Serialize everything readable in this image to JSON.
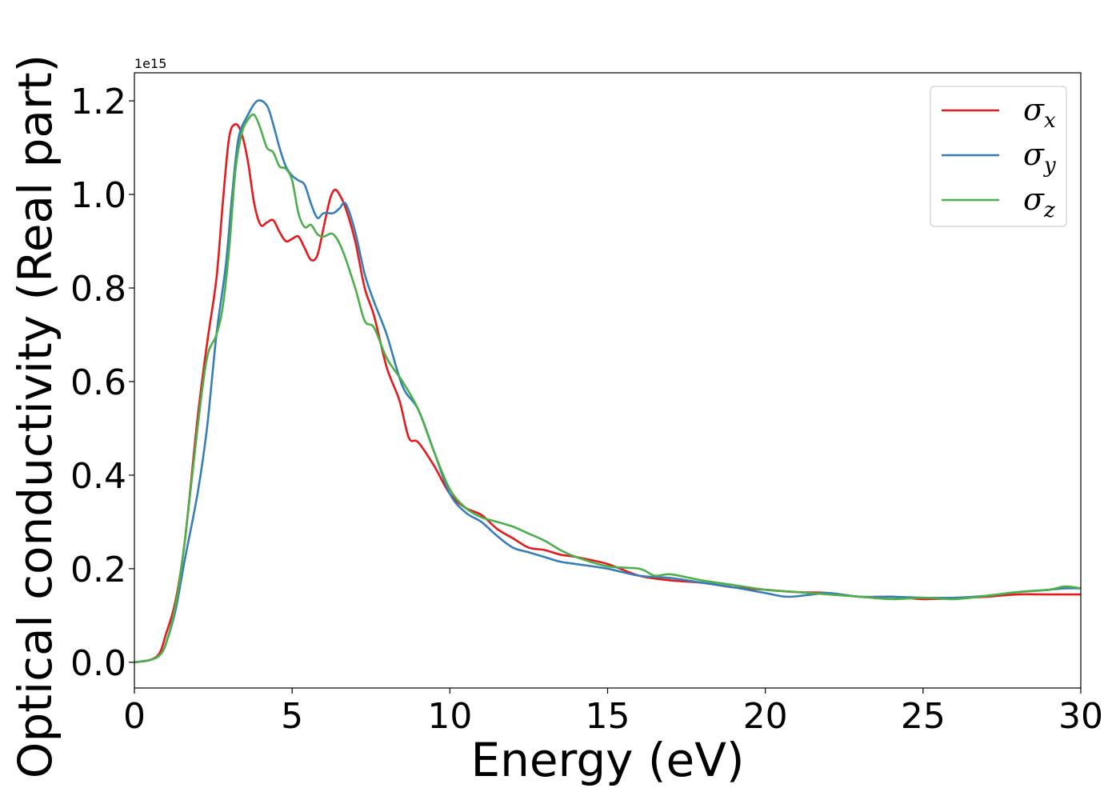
{
  "chart_data": {
    "type": "line",
    "title": "",
    "xlabel": "Energy (eV)",
    "ylabel": "Optical conductivity (Real part)",
    "y_offset_label": "1e15",
    "xlim": [
      0,
      30
    ],
    "ylim": [
      -0.055,
      1.26
    ],
    "y_scale_factor": 1000000000000000.0,
    "x_ticks": [
      0,
      5,
      10,
      15,
      20,
      25,
      30
    ],
    "x_tick_labels": [
      "0",
      "5",
      "10",
      "15",
      "20",
      "25",
      "30"
    ],
    "y_ticks": [
      0.0,
      0.2,
      0.4,
      0.6,
      0.8,
      1.0,
      1.2
    ],
    "y_tick_labels": [
      "0.0",
      "0.2",
      "0.4",
      "0.6",
      "0.8",
      "1.0",
      "1.2"
    ],
    "grid": false,
    "legend_position": "top-right",
    "series": [
      {
        "name": "σ",
        "subscript": "x",
        "color": "#e41a1c",
        "points": [
          [
            0,
            0
          ],
          [
            0.5,
            0.005
          ],
          [
            0.8,
            0.02
          ],
          [
            1.0,
            0.06
          ],
          [
            1.3,
            0.13
          ],
          [
            1.6,
            0.26
          ],
          [
            2.0,
            0.52
          ],
          [
            2.3,
            0.68
          ],
          [
            2.6,
            0.82
          ],
          [
            2.8,
            0.98
          ],
          [
            3.0,
            1.12
          ],
          [
            3.2,
            1.15
          ],
          [
            3.4,
            1.13
          ],
          [
            3.6,
            1.07
          ],
          [
            3.8,
            0.98
          ],
          [
            4.0,
            0.935
          ],
          [
            4.2,
            0.94
          ],
          [
            4.4,
            0.945
          ],
          [
            4.6,
            0.92
          ],
          [
            4.8,
            0.9
          ],
          [
            5.0,
            0.905
          ],
          [
            5.2,
            0.91
          ],
          [
            5.4,
            0.885
          ],
          [
            5.6,
            0.86
          ],
          [
            5.8,
            0.87
          ],
          [
            6.0,
            0.93
          ],
          [
            6.2,
            0.99
          ],
          [
            6.35,
            1.01
          ],
          [
            6.5,
            1.0
          ],
          [
            6.7,
            0.97
          ],
          [
            7.0,
            0.9
          ],
          [
            7.3,
            0.8
          ],
          [
            7.6,
            0.74
          ],
          [
            8.0,
            0.63
          ],
          [
            8.4,
            0.56
          ],
          [
            8.7,
            0.48
          ],
          [
            9.0,
            0.47
          ],
          [
            9.5,
            0.42
          ],
          [
            10.0,
            0.36
          ],
          [
            10.5,
            0.33
          ],
          [
            11.0,
            0.315
          ],
          [
            11.5,
            0.285
          ],
          [
            12.0,
            0.265
          ],
          [
            12.5,
            0.245
          ],
          [
            13.0,
            0.24
          ],
          [
            13.5,
            0.23
          ],
          [
            14.0,
            0.225
          ],
          [
            15.0,
            0.21
          ],
          [
            16.0,
            0.185
          ],
          [
            17.0,
            0.175
          ],
          [
            18.0,
            0.17
          ],
          [
            19.0,
            0.16
          ],
          [
            20.0,
            0.155
          ],
          [
            21.0,
            0.15
          ],
          [
            22.0,
            0.148
          ],
          [
            23.0,
            0.14
          ],
          [
            24.0,
            0.14
          ],
          [
            25.0,
            0.135
          ],
          [
            26.0,
            0.137
          ],
          [
            27.0,
            0.14
          ],
          [
            28.0,
            0.145
          ],
          [
            29.0,
            0.145
          ],
          [
            30.0,
            0.145
          ]
        ]
      },
      {
        "name": "σ",
        "subscript": "y",
        "color": "#377eb8",
        "points": [
          [
            0,
            0
          ],
          [
            0.5,
            0.005
          ],
          [
            0.8,
            0.015
          ],
          [
            1.0,
            0.04
          ],
          [
            1.3,
            0.11
          ],
          [
            1.6,
            0.22
          ],
          [
            2.0,
            0.36
          ],
          [
            2.3,
            0.5
          ],
          [
            2.6,
            0.7
          ],
          [
            2.9,
            0.85
          ],
          [
            3.1,
            1.0
          ],
          [
            3.3,
            1.12
          ],
          [
            3.6,
            1.17
          ],
          [
            3.9,
            1.2
          ],
          [
            4.2,
            1.19
          ],
          [
            4.4,
            1.15
          ],
          [
            4.6,
            1.1
          ],
          [
            4.8,
            1.06
          ],
          [
            5.0,
            1.04
          ],
          [
            5.2,
            1.03
          ],
          [
            5.4,
            1.02
          ],
          [
            5.6,
            0.98
          ],
          [
            5.8,
            0.95
          ],
          [
            6.0,
            0.96
          ],
          [
            6.3,
            0.96
          ],
          [
            6.5,
            0.97
          ],
          [
            6.7,
            0.98
          ],
          [
            7.0,
            0.92
          ],
          [
            7.3,
            0.83
          ],
          [
            7.6,
            0.77
          ],
          [
            8.0,
            0.7
          ],
          [
            8.5,
            0.59
          ],
          [
            9.0,
            0.54
          ],
          [
            9.5,
            0.45
          ],
          [
            10.0,
            0.36
          ],
          [
            10.5,
            0.32
          ],
          [
            11.0,
            0.3
          ],
          [
            11.5,
            0.27
          ],
          [
            12.0,
            0.245
          ],
          [
            12.5,
            0.235
          ],
          [
            13.0,
            0.225
          ],
          [
            13.5,
            0.215
          ],
          [
            14.0,
            0.21
          ],
          [
            15.0,
            0.2
          ],
          [
            16.0,
            0.185
          ],
          [
            17.0,
            0.18
          ],
          [
            18.0,
            0.17
          ],
          [
            19.0,
            0.16
          ],
          [
            20.0,
            0.148
          ],
          [
            20.7,
            0.14
          ],
          [
            21.5,
            0.145
          ],
          [
            22.0,
            0.148
          ],
          [
            23.0,
            0.14
          ],
          [
            24.0,
            0.14
          ],
          [
            25.0,
            0.138
          ],
          [
            26.0,
            0.138
          ],
          [
            27.0,
            0.142
          ],
          [
            28.0,
            0.15
          ],
          [
            29.0,
            0.155
          ],
          [
            29.5,
            0.158
          ],
          [
            30.0,
            0.158
          ]
        ]
      },
      {
        "name": "σ",
        "subscript": "z",
        "color": "#4daf4a",
        "points": [
          [
            0,
            0
          ],
          [
            0.5,
            0.005
          ],
          [
            0.8,
            0.015
          ],
          [
            1.0,
            0.04
          ],
          [
            1.3,
            0.12
          ],
          [
            1.6,
            0.26
          ],
          [
            2.0,
            0.5
          ],
          [
            2.3,
            0.65
          ],
          [
            2.6,
            0.7
          ],
          [
            2.8,
            0.76
          ],
          [
            3.0,
            0.88
          ],
          [
            3.2,
            1.05
          ],
          [
            3.4,
            1.13
          ],
          [
            3.6,
            1.16
          ],
          [
            3.8,
            1.17
          ],
          [
            4.0,
            1.14
          ],
          [
            4.2,
            1.1
          ],
          [
            4.4,
            1.09
          ],
          [
            4.6,
            1.06
          ],
          [
            4.8,
            1.055
          ],
          [
            5.0,
            1.03
          ],
          [
            5.2,
            0.96
          ],
          [
            5.4,
            0.93
          ],
          [
            5.6,
            0.935
          ],
          [
            5.8,
            0.915
          ],
          [
            6.0,
            0.91
          ],
          [
            6.3,
            0.915
          ],
          [
            6.6,
            0.88
          ],
          [
            7.0,
            0.8
          ],
          [
            7.3,
            0.73
          ],
          [
            7.6,
            0.715
          ],
          [
            8.0,
            0.65
          ],
          [
            8.5,
            0.6
          ],
          [
            9.0,
            0.54
          ],
          [
            9.5,
            0.45
          ],
          [
            10.0,
            0.37
          ],
          [
            10.5,
            0.33
          ],
          [
            11.0,
            0.31
          ],
          [
            11.5,
            0.3
          ],
          [
            12.0,
            0.29
          ],
          [
            12.5,
            0.275
          ],
          [
            13.0,
            0.26
          ],
          [
            13.5,
            0.24
          ],
          [
            14.0,
            0.225
          ],
          [
            15.0,
            0.205
          ],
          [
            16.0,
            0.2
          ],
          [
            16.5,
            0.185
          ],
          [
            17.0,
            0.188
          ],
          [
            18.0,
            0.175
          ],
          [
            19.0,
            0.165
          ],
          [
            20.0,
            0.155
          ],
          [
            21.0,
            0.15
          ],
          [
            22.0,
            0.145
          ],
          [
            23.0,
            0.14
          ],
          [
            24.0,
            0.135
          ],
          [
            25.0,
            0.138
          ],
          [
            26.0,
            0.135
          ],
          [
            27.0,
            0.142
          ],
          [
            28.0,
            0.15
          ],
          [
            29.0,
            0.155
          ],
          [
            29.5,
            0.162
          ],
          [
            30.0,
            0.158
          ]
        ]
      }
    ]
  }
}
